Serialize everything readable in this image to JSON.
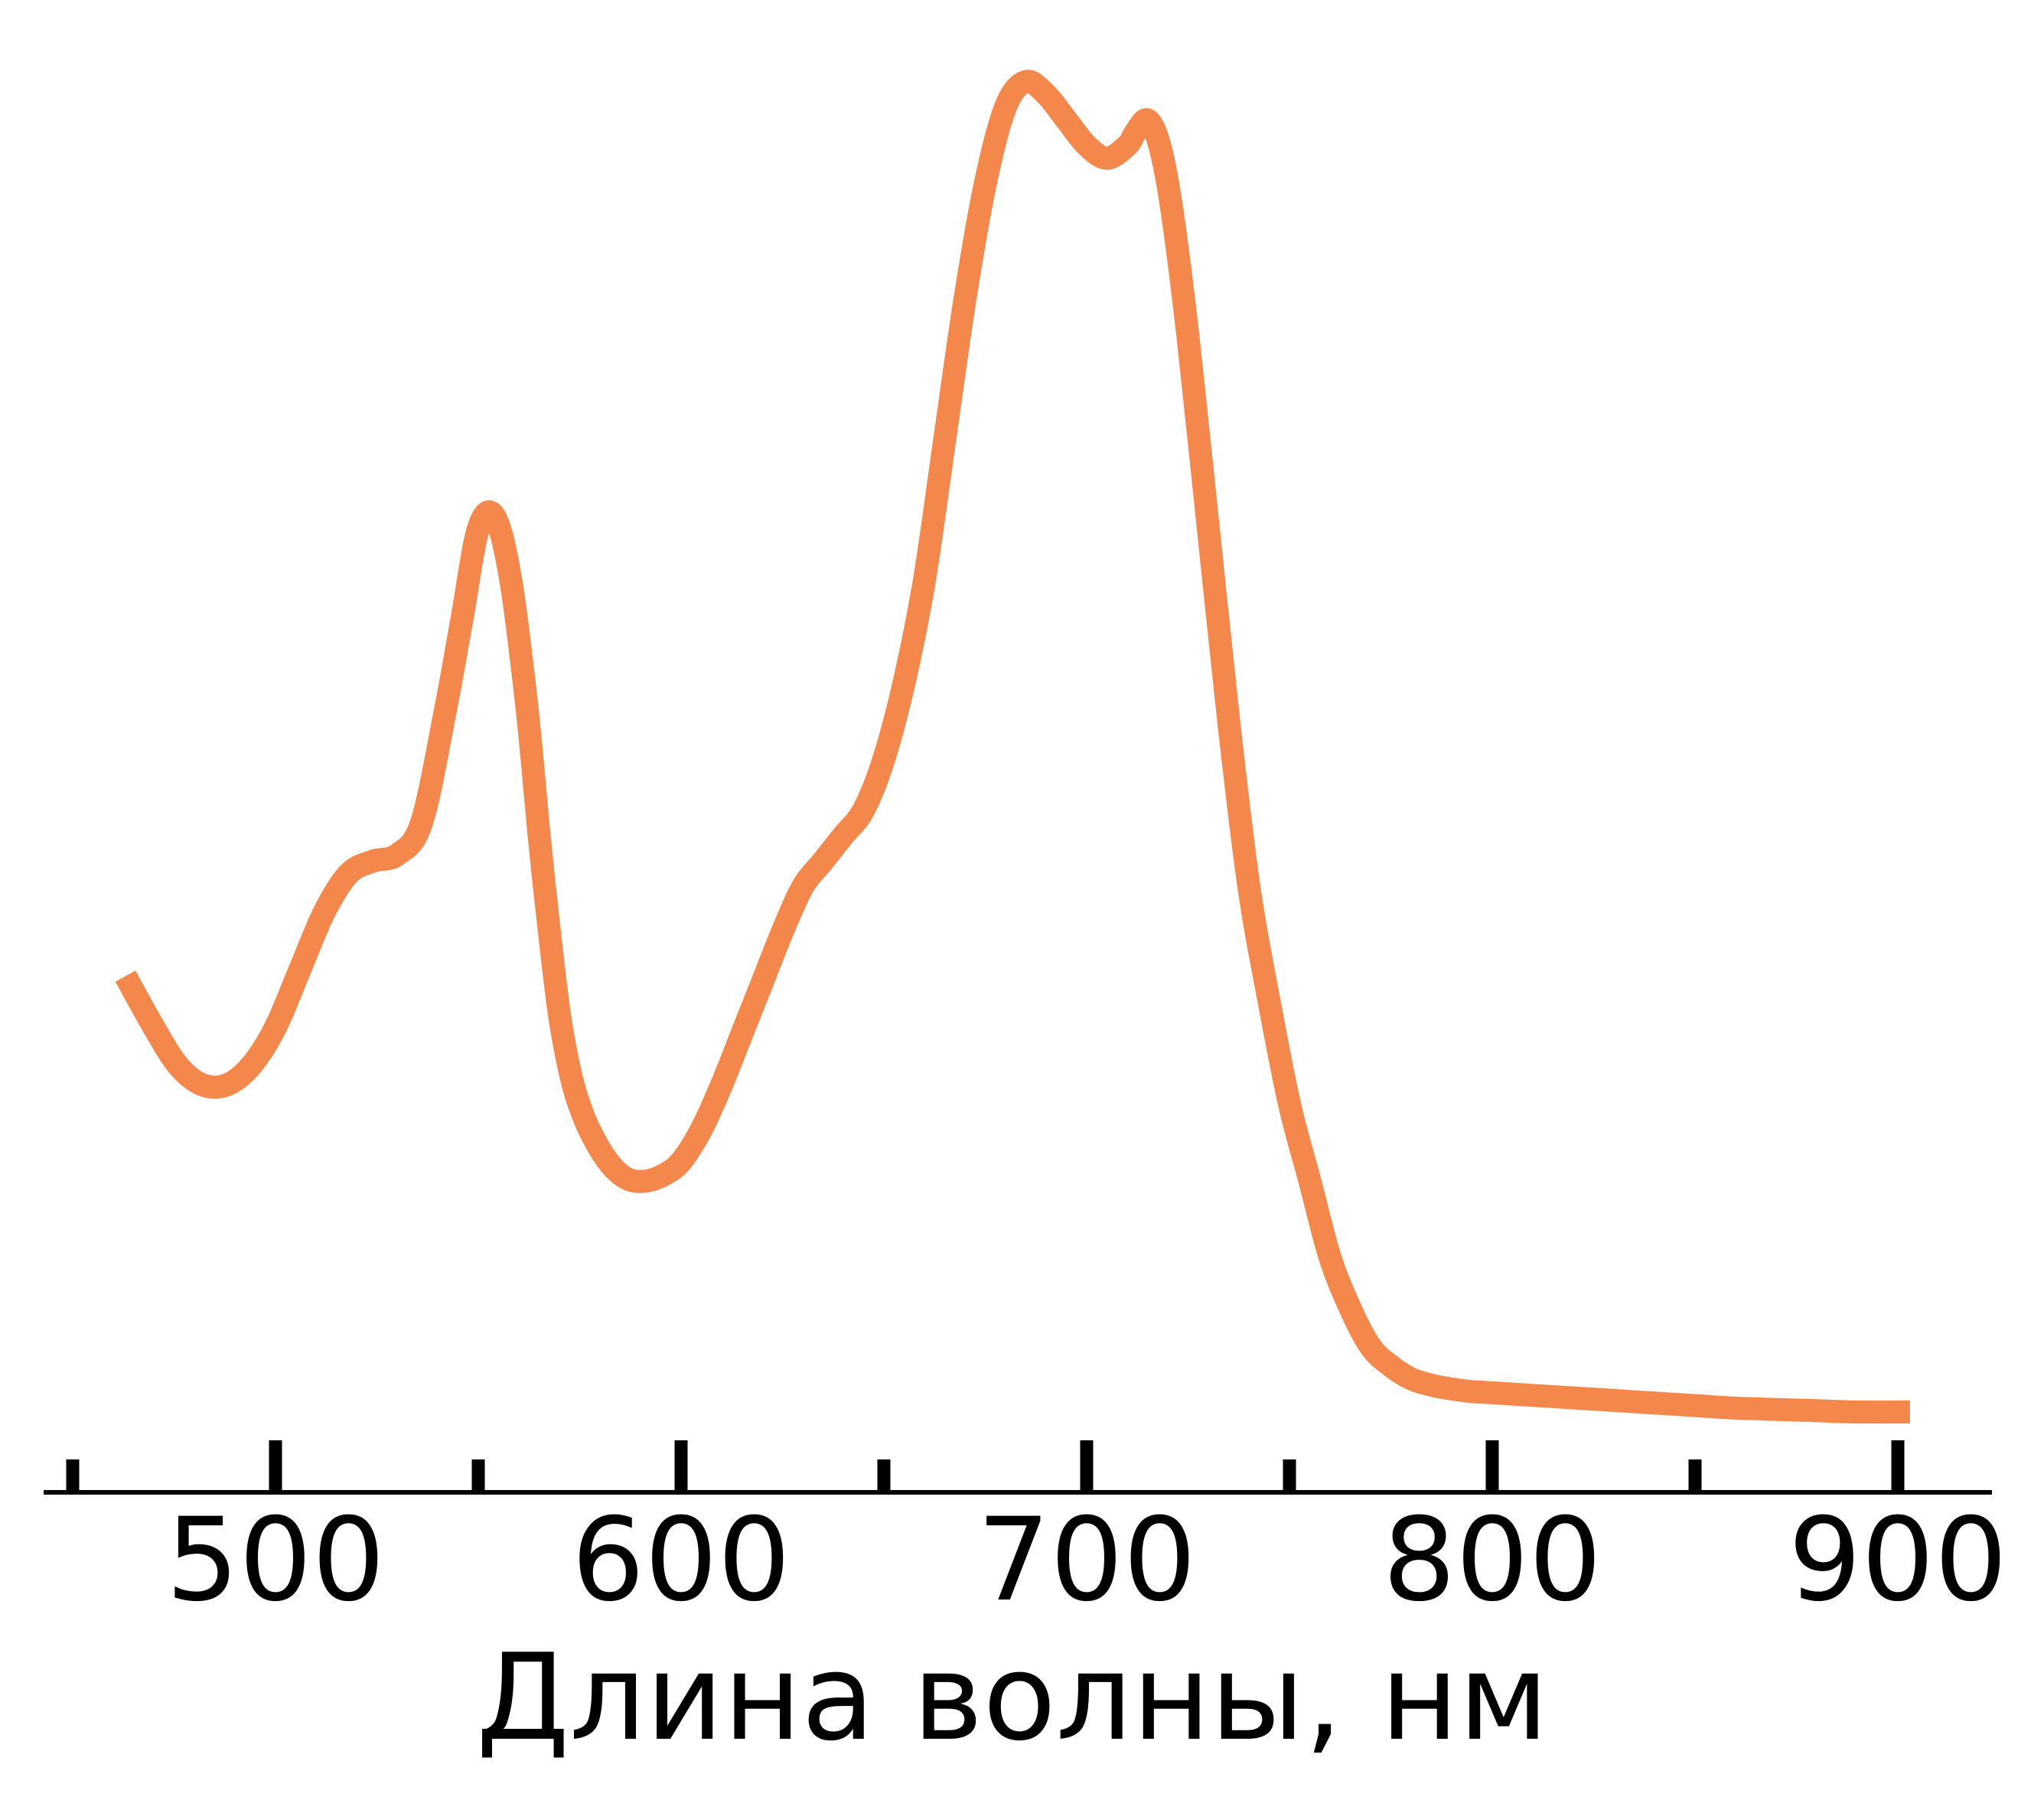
{
  "chart_data": {
    "type": "line",
    "title": "",
    "xlabel": "Длина волны, нм",
    "ylabel": "",
    "xlim": [
      450,
      925
    ],
    "ylim": [
      0,
      1.03
    ],
    "x_ticks_major": [
      500,
      600,
      700,
      800,
      900
    ],
    "x_ticks_minor": [
      450,
      550,
      650,
      750,
      850
    ],
    "x_tick_labels": [
      "500",
      "600",
      "700",
      "800",
      "900"
    ],
    "y_axis_visible": false,
    "grid": false,
    "legend": "none",
    "line_color": "#f4874b",
    "series": [
      {
        "x": [
          463,
          470,
          476,
          482,
          488,
          494,
          500,
          506,
          512,
          518,
          524,
          530,
          536,
          542,
          546,
          550,
          554,
          558,
          562,
          565,
          567,
          570,
          573,
          576,
          579,
          582,
          585,
          588,
          592,
          596,
          600,
          605,
          610,
          615,
          620,
          625,
          630,
          635,
          640,
          645,
          650,
          655,
          660,
          665,
          670,
          675,
          680,
          685,
          690,
          695,
          700,
          705,
          710,
          712,
          715,
          718,
          721,
          725,
          730,
          735,
          740,
          745,
          750,
          755,
          760,
          765,
          770,
          775,
          780,
          785,
          790,
          795,
          800,
          810,
          820,
          830,
          840,
          850,
          860,
          870,
          880,
          890,
          903
        ],
        "y": [
          0.35,
          0.31,
          0.28,
          0.265,
          0.265,
          0.28,
          0.31,
          0.355,
          0.4,
          0.43,
          0.44,
          0.445,
          0.47,
          0.56,
          0.63,
          0.7,
          0.71,
          0.66,
          0.56,
          0.46,
          0.4,
          0.32,
          0.27,
          0.24,
          0.22,
          0.205,
          0.195,
          0.19,
          0.19,
          0.195,
          0.205,
          0.23,
          0.265,
          0.305,
          0.345,
          0.385,
          0.42,
          0.44,
          0.46,
          0.48,
          0.52,
          0.58,
          0.66,
          0.77,
          0.88,
          0.97,
          1.03,
          1.05,
          1.04,
          1.02,
          1.0,
          0.99,
          1.0,
          1.01,
          1.02,
          1.0,
          0.95,
          0.85,
          0.7,
          0.55,
          0.42,
          0.33,
          0.25,
          0.19,
          0.13,
          0.09,
          0.06,
          0.045,
          0.035,
          0.03,
          0.027,
          0.025,
          0.024,
          0.022,
          0.02,
          0.018,
          0.016,
          0.014,
          0.012,
          0.011,
          0.01,
          0.009,
          0.009
        ]
      }
    ]
  }
}
